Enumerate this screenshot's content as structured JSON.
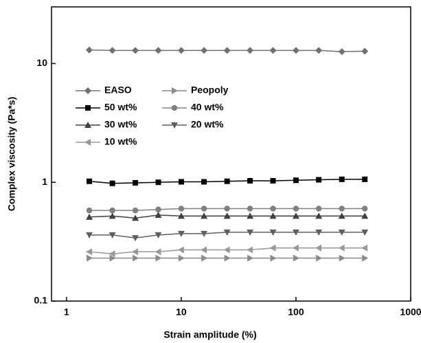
{
  "chart_data": {
    "type": "line",
    "xlabel": "Strain amplitude (%)",
    "ylabel": "Complex viscosity (Pa*s)",
    "xscale": "log",
    "yscale": "log",
    "xlim": [
      0.74,
      1000
    ],
    "ylim": [
      0.1,
      30
    ],
    "xticks": [
      1,
      10,
      100,
      1000
    ],
    "yticks": [
      0.1,
      1,
      10
    ],
    "legend": "upper left",
    "x": [
      1.58,
      2.51,
      3.98,
      6.31,
      10,
      15.8,
      25.1,
      39.8,
      63.1,
      100,
      158,
      251,
      398
    ],
    "series": [
      {
        "name": "EASO",
        "color": "#707070",
        "marker": "diamond",
        "values": [
          13,
          12.9,
          12.9,
          12.9,
          12.9,
          12.9,
          12.9,
          12.9,
          12.9,
          12.9,
          12.9,
          12.6,
          12.7
        ]
      },
      {
        "name": "Peopoly",
        "color": "#8a8a8a",
        "marker": "right-triangle",
        "values": [
          0.23,
          0.23,
          0.23,
          0.23,
          0.23,
          0.23,
          0.23,
          0.23,
          0.23,
          0.23,
          0.23,
          0.23,
          0.23
        ]
      },
      {
        "name": "50 wt%",
        "color": "#000000",
        "marker": "square",
        "values": [
          1.02,
          0.98,
          0.99,
          1.0,
          1.01,
          1.01,
          1.02,
          1.03,
          1.03,
          1.04,
          1.05,
          1.06,
          1.06
        ]
      },
      {
        "name": "40 wt%",
        "color": "#808080",
        "marker": "circle",
        "values": [
          0.58,
          0.58,
          0.58,
          0.59,
          0.6,
          0.6,
          0.6,
          0.6,
          0.6,
          0.6,
          0.6,
          0.6,
          0.6
        ]
      },
      {
        "name": "30 wt%",
        "color": "#404040",
        "marker": "triangle",
        "values": [
          0.51,
          0.52,
          0.5,
          0.53,
          0.52,
          0.52,
          0.52,
          0.52,
          0.52,
          0.52,
          0.52,
          0.52,
          0.52
        ]
      },
      {
        "name": "20 wt%",
        "color": "#606060",
        "marker": "down-triangle",
        "values": [
          0.36,
          0.36,
          0.34,
          0.36,
          0.37,
          0.37,
          0.38,
          0.38,
          0.38,
          0.38,
          0.38,
          0.38,
          0.38
        ]
      },
      {
        "name": "10 wt%",
        "color": "#989898",
        "marker": "left-triangle",
        "values": [
          0.26,
          0.25,
          0.26,
          0.26,
          0.27,
          0.27,
          0.27,
          0.27,
          0.28,
          0.28,
          0.28,
          0.28,
          0.28
        ]
      }
    ]
  }
}
